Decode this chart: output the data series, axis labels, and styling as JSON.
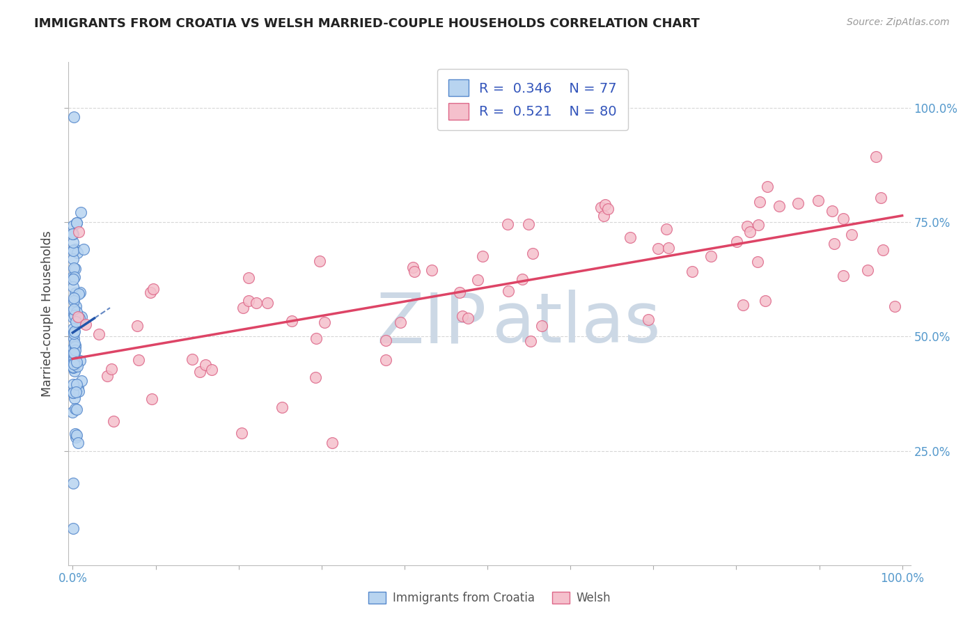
{
  "title": "IMMIGRANTS FROM CROATIA VS WELSH MARRIED-COUPLE HOUSEHOLDS CORRELATION CHART",
  "source": "Source: ZipAtlas.com",
  "ylabel": "Married-couple Households",
  "legend_label_blue": "Immigrants from Croatia",
  "legend_label_pink": "Welsh",
  "r_blue": 0.346,
  "n_blue": 77,
  "r_pink": 0.521,
  "n_pink": 80,
  "blue_scatter_fill": "#b8d4f0",
  "blue_scatter_edge": "#5588cc",
  "blue_line_color": "#2255aa",
  "pink_scatter_fill": "#f5c0cc",
  "pink_scatter_edge": "#dd6688",
  "pink_line_color": "#dd4466",
  "watermark_zip_color": "#c8d8e8",
  "watermark_atlas_color": "#c8d8e8",
  "grid_color": "#cccccc",
  "axis_tick_color": "#5599cc",
  "title_color": "#222222",
  "source_color": "#999999",
  "ylabel_color": "#444444",
  "legend_border_color": "#cccccc",
  "legend_text_color": "#3355bb",
  "bottom_legend_text_color": "#555555"
}
